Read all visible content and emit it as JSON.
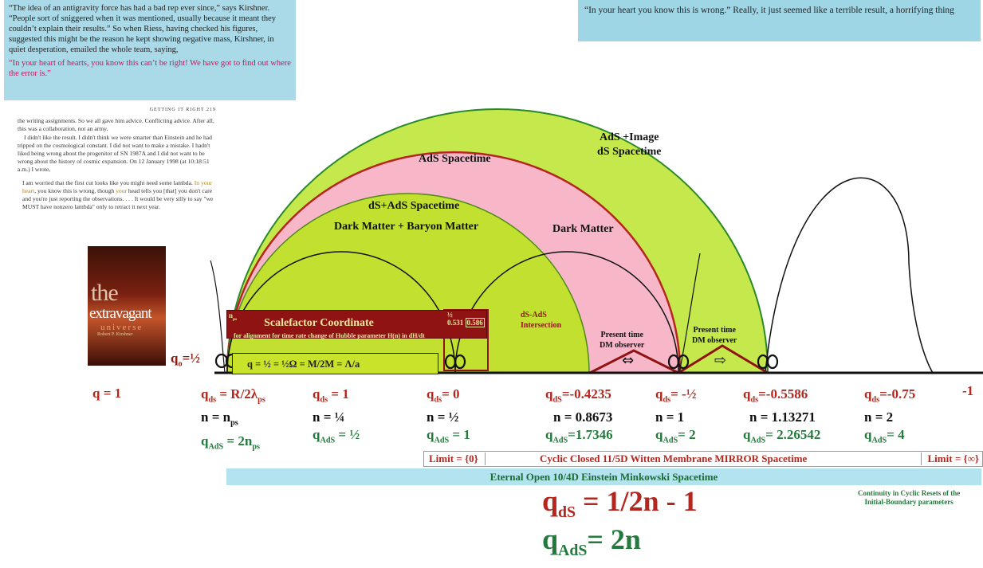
{
  "quote_top_left": {
    "text": "“The idea of an antigravity force has had a bad rep ever since,” says Kirshner. “People sort of sniggered when it was mentioned, usually because it meant they couldn’t explain their results.” So when Riess, having checked his figures, suggested this might be the reason he kept showing negative mass, Kirshner, in quiet desperation, emailed the whole team, saying,",
    "highlight": "“In your heart of hearts, you know this can’t be right! We have got to find out where the error is.”"
  },
  "quote_top_right": {
    "text": "“In your heart you know this is wrong.” Really, it just seemed like a terrible result, a horrifying thing"
  },
  "book_page": {
    "header": "GETTING IT RIGHT      219",
    "para1": "the writing assignments. So we all gave him advice. Conflicting advice. After all, this was a collaboration, not an army.",
    "para2": "I didn't like the result. I didn't think we were smarter than Einstein and he had tripped on the cosmological constant. I did not want to make a mistake. I hadn't liked being wrong about the progenitor of SN 1987A and I did not want to be wrong about the history of cosmic expansion. On 12 January 1998 (at 10:18:51 a.m.) I wrote,",
    "quote_a": "I am worried that the first cut looks like you might need some lambda.",
    "quote_hl1": "In your heart",
    "quote_b": ", you know this is wrong, though ",
    "quote_hl2": "your",
    "quote_c": " head tells you [that] you don't care and you're just reporting the observations. . . . It would be very silly to say \"we MUST have nonzero lambda\" only to retract it next year."
  },
  "book_cover": {
    "title_top": "the",
    "title_main": "extravagant",
    "title_sub": "universe",
    "author": "Robert P. Kirshner"
  },
  "regions": {
    "ads_image": "AdS +Image",
    "ds_spacetime": "dS Spacetime",
    "ads_spacetime": "AdS Spacetime",
    "ds_ads_spacetime": "dS+AdS Spacetime",
    "dark_baryon": "Dark Matter + Baryon Matter",
    "dark_matter": "Dark Matter",
    "ds_ads_intersection_1": "dS-AdS",
    "ds_ads_intersection_2": "Intersection",
    "present_time_1": "Present time",
    "dm_observer": "DM observer"
  },
  "scalefactor": {
    "title": "Scalefactor Coordinate",
    "subtitle": "for alignment for time rate change of  Hubble parameter H(n) in dH/dt",
    "n_ps": "n",
    "n_ps_sub": "ps",
    "half": "½",
    "v1": "0.531",
    "v2": "0.586"
  },
  "equation_box": "q = ½ = ½Ω = M/2M = Λ/a",
  "q0_label": "q",
  "q0_value": "=½",
  "columns": [
    {
      "qds": "q = 1"
    },
    {
      "qds_prefix": "q",
      "qds_val": "= R/2λ",
      "n_val": "n = n",
      "qads_val": "= 2n"
    },
    {
      "qds_val": "= 1",
      "n_val": "n   = ¼",
      "qads_val": "= ½"
    },
    {
      "qds_val": "= 0",
      "n_val": "n  = ½",
      "qads_val": "= 1"
    },
    {
      "qds_val": "=-0.4235",
      "n_val": "n = 0.8673",
      "qads_val": "=1.7346"
    },
    {
      "qds_val": "= -½",
      "n_val": "n = 1",
      "qads_val": "= 2"
    },
    {
      "qds_val": "=-0.5586",
      "n_val": "n = 1.13271",
      "qads_val": "= 2.26542"
    },
    {
      "qds_val": "=-0.75",
      "n_val": "n  = 2",
      "qads_val": "= 4"
    },
    {
      "qds": "-1"
    }
  ],
  "sub_ds": "ds",
  "sub_ads": "AdS",
  "sub_dS": "dS",
  "sub_H": "H",
  "sub_ps": "ps",
  "limit_left": "Limit = {0}",
  "cyclic_label": "Cyclic  Closed 11/5D Witten Membrane MIRROR Spacetime",
  "limit_right": "Limit = {∞}",
  "eternal_label": "Eternal Open 10/4D Einstein Minkowski Spacetime",
  "continuity_1": "Continuity in Cyclic Resets of the",
  "continuity_2": "Initial-Boundary parameters",
  "formula_qds_lhs": "q",
  "formula_qds_rhs": "=   1/2n  - 1",
  "formula_qads_lhs": "q",
  "formula_qads_rhs": "=   2n",
  "colors": {
    "outer_green": "#c5e84c",
    "pink": "#f8b7c9",
    "inner_green": "#c2e02f",
    "maroon": "#8f1313",
    "cyan": "#b3e3ef"
  }
}
